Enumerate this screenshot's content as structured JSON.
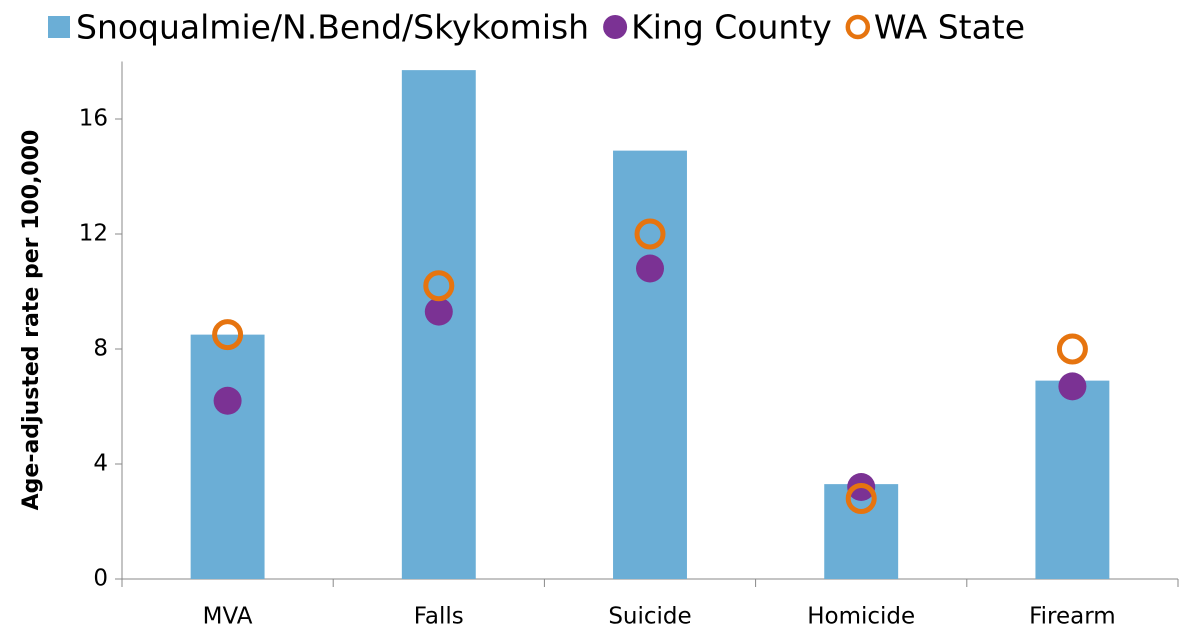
{
  "chart_data": {
    "type": "combo",
    "y_axis_label": "Age-adjusted rate per 100,000",
    "categories": [
      "MVA",
      "Falls",
      "Suicide",
      "Homicide",
      "Firearm"
    ],
    "series": [
      {
        "name": "Snoqualmie/N.Bend/Skykomish",
        "type": "bar",
        "color": "#6baed6",
        "values": [
          8.5,
          17.7,
          14.9,
          3.3,
          6.9
        ]
      },
      {
        "name": "King County",
        "type": "scatter",
        "marker": "filled",
        "color": "#7b3294",
        "values": [
          6.2,
          9.3,
          10.8,
          3.2,
          6.7
        ]
      },
      {
        "name": "WA State",
        "type": "scatter",
        "marker": "hollow",
        "color": "#e6740f",
        "values": [
          8.5,
          10.2,
          12.0,
          2.8,
          8.0
        ]
      }
    ],
    "ylim": [
      0,
      18
    ],
    "yticks": [
      0,
      4,
      8,
      12,
      16
    ],
    "legend": "top"
  }
}
